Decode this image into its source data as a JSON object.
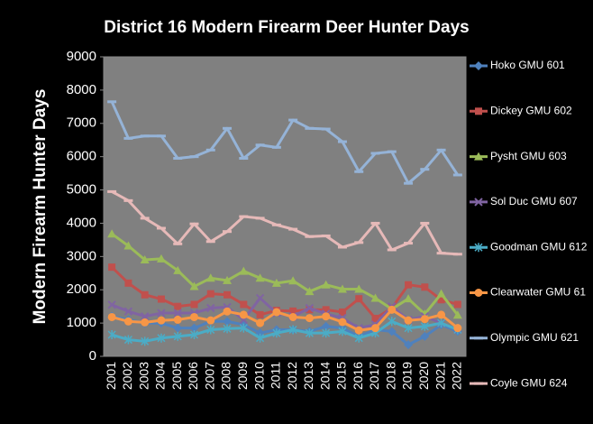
{
  "chart_data": {
    "type": "line",
    "title": "District 16 Modern Firearm Deer Hunter Days",
    "y_label": "Modern Firearm Hunter Days",
    "categories": [
      "2001",
      "2002",
      "2003",
      "2004",
      "2005",
      "2006",
      "2007",
      "2008",
      "2009",
      "2010",
      "2011",
      "2012",
      "2013",
      "2014",
      "2015",
      "2016",
      "2017",
      "2018",
      "2019",
      "2020",
      "2021",
      "2022"
    ],
    "ylim": [
      0,
      9000
    ],
    "yticks": [
      0,
      1000,
      2000,
      3000,
      4000,
      5000,
      6000,
      7000,
      8000,
      9000
    ],
    "grid": false,
    "legend": "right",
    "series": [
      {
        "name": "Hoko GMU 601",
        "color": "#4f81bd",
        "marker": "diamond",
        "values": [
          1200,
          1100,
          1000,
          1000,
          850,
          850,
          1050,
          1050,
          950,
          700,
          800,
          800,
          750,
          900,
          850,
          600,
          800,
          750,
          350,
          600,
          950,
          750
        ]
      },
      {
        "name": "Dickey GMU 602",
        "color": "#c0504d",
        "marker": "square",
        "values": [
          2680,
          2200,
          1850,
          1720,
          1500,
          1560,
          1880,
          1850,
          1560,
          1250,
          1380,
          1360,
          1400,
          1400,
          1330,
          1730,
          1140,
          1450,
          2150,
          2080,
          1700,
          1560
        ]
      },
      {
        "name": "Pysht GMU 603",
        "color": "#9bbb59",
        "marker": "triangle",
        "values": [
          3680,
          3320,
          2900,
          2930,
          2580,
          2100,
          2350,
          2280,
          2560,
          2350,
          2200,
          2270,
          1950,
          2150,
          2020,
          2020,
          1750,
          1420,
          1730,
          1270,
          1880,
          1240
        ]
      },
      {
        "name": "Sol Duc GMU 607",
        "color": "#8064a2",
        "marker": "x",
        "values": [
          1550,
          1350,
          1200,
          1300,
          1300,
          1300,
          1450,
          1480,
          1100,
          1750,
          1300,
          1200,
          1450,
          1280,
          1150,
          850,
          950,
          1500,
          1100,
          1200,
          1000,
          800
        ]
      },
      {
        "name": "Goodman GMU 612",
        "color": "#4bacc6",
        "marker": "star",
        "values": [
          650,
          500,
          450,
          550,
          600,
          650,
          800,
          830,
          850,
          550,
          700,
          800,
          700,
          700,
          750,
          550,
          700,
          1050,
          850,
          900,
          1000,
          800
        ]
      },
      {
        "name": "Clearwater GMU 61",
        "color": "#f79646",
        "marker": "circle",
        "values": [
          1180,
          1050,
          1020,
          1080,
          1100,
          1180,
          1080,
          1350,
          1250,
          1000,
          1330,
          1180,
          1150,
          1200,
          1030,
          780,
          850,
          1400,
          1080,
          1120,
          1250,
          850
        ]
      },
      {
        "name": "Olympic GMU 621",
        "color": "#95b3d7",
        "marker": "dash",
        "values": [
          7650,
          6550,
          6620,
          6620,
          5950,
          6000,
          6200,
          6850,
          5950,
          6350,
          6280,
          7100,
          6850,
          6830,
          6450,
          5550,
          6100,
          6150,
          5200,
          5620,
          6200,
          5450
        ]
      },
      {
        "name": "Coyle GMU 624",
        "color": "#e6b9b8",
        "marker": "dash",
        "values": [
          4950,
          4680,
          4150,
          3850,
          3380,
          3980,
          3450,
          3750,
          4200,
          4150,
          3950,
          3820,
          3600,
          3620,
          3280,
          3420,
          4000,
          3200,
          3400,
          4000,
          3100,
          3070
        ]
      }
    ]
  }
}
